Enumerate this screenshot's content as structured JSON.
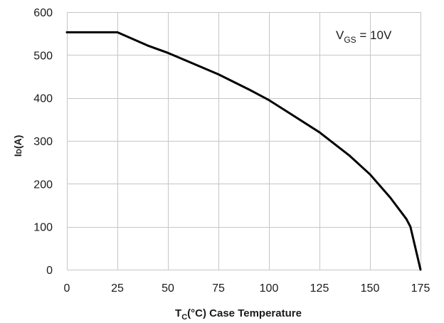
{
  "chart_data": {
    "type": "line",
    "xlabel": {
      "main": "T",
      "sub": "C",
      "rest": "(°C) Case Temperature"
    },
    "ylabel": {
      "main": "I",
      "sub": "D",
      "rest": "(A)"
    },
    "xlim": [
      0,
      175
    ],
    "ylim": [
      0,
      600
    ],
    "x_ticks": [
      "0",
      "25",
      "50",
      "75",
      "100",
      "125",
      "150",
      "175"
    ],
    "y_ticks": [
      "0",
      "100",
      "200",
      "300",
      "400",
      "500",
      "600"
    ],
    "x_tick_values": [
      0,
      25,
      50,
      75,
      100,
      125,
      150,
      175
    ],
    "y_tick_values": [
      0,
      100,
      200,
      300,
      400,
      500,
      600
    ],
    "grid": true,
    "annotation": {
      "main": "V",
      "sub": "GS",
      "rest": " = 10V"
    },
    "series": [
      {
        "x": [
          0,
          25,
          40,
          50,
          60,
          75,
          90,
          100,
          110,
          125,
          140,
          150,
          160,
          168,
          170,
          172,
          175
        ],
        "y": [
          553,
          553,
          522,
          505,
          485,
          455,
          420,
          395,
          365,
          320,
          265,
          222,
          168,
          118,
          100,
          60,
          0
        ],
        "color": "#000000"
      }
    ]
  }
}
